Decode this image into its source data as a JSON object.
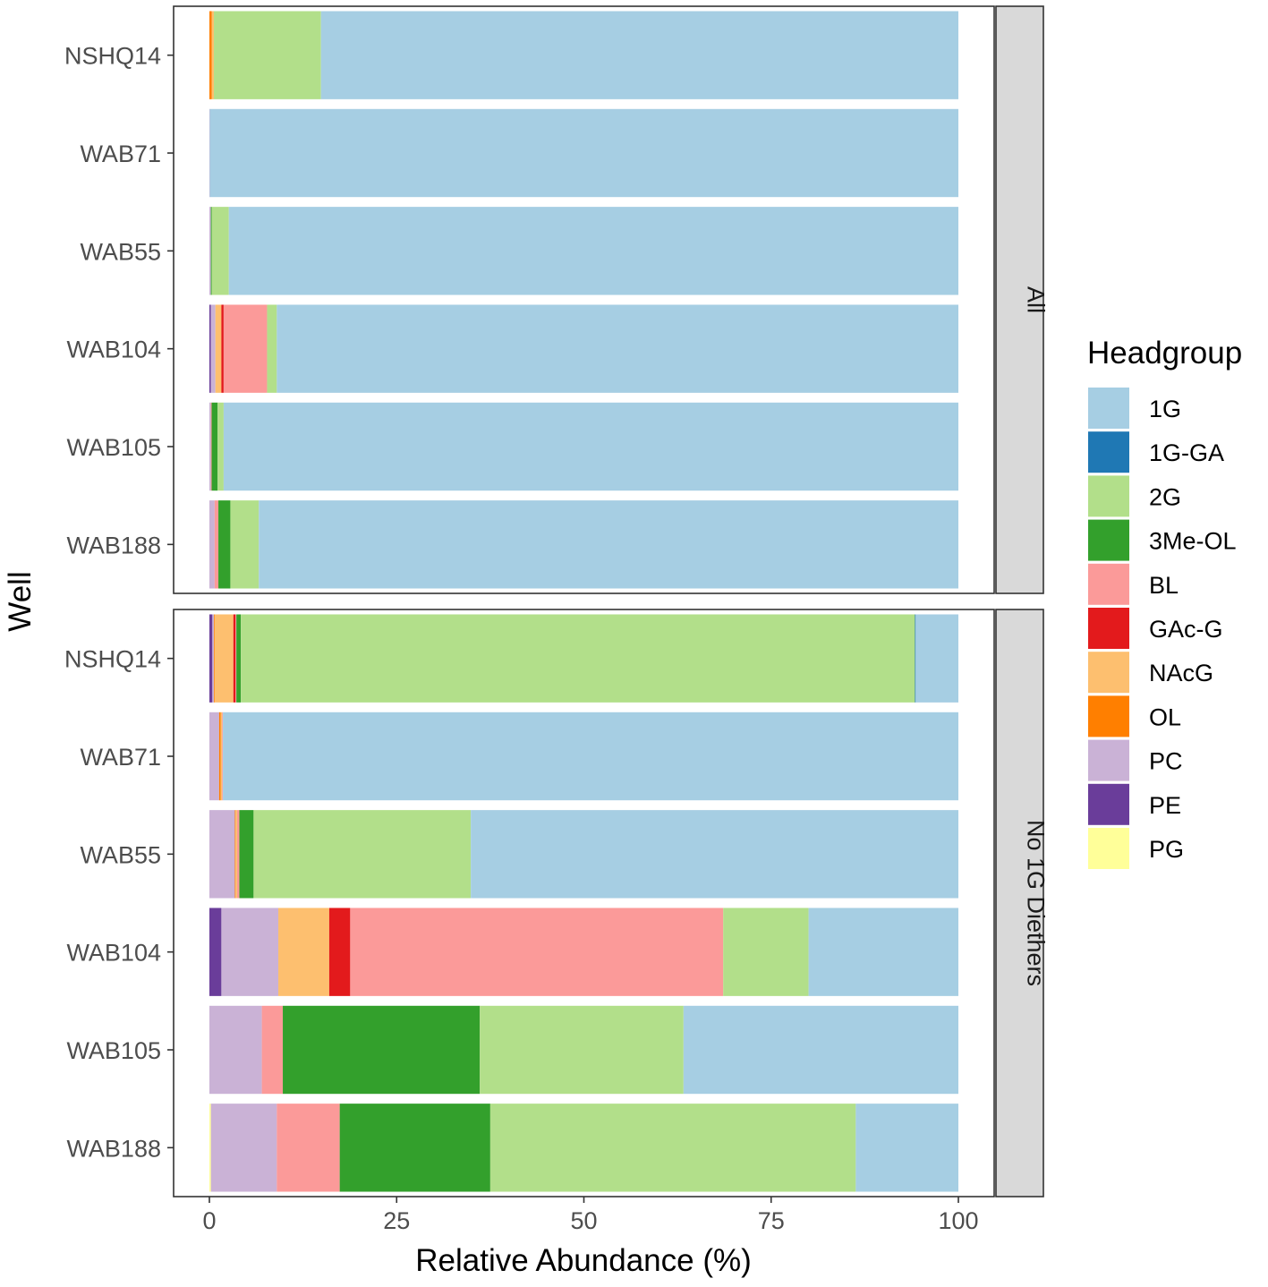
{
  "chart_data": {
    "type": "bar",
    "orientation": "horizontal",
    "stacked": true,
    "xlabel": "Relative Abundance (%)",
    "ylabel": "Well",
    "xlim": [
      0,
      100
    ],
    "xticks": [
      0,
      25,
      50,
      75,
      100
    ],
    "xtick_labels": [
      "0",
      "25",
      "50",
      "75",
      "100"
    ],
    "grid": false,
    "legend": {
      "title": "Headgroup",
      "position": "right",
      "entries": [
        {
          "name": "1G",
          "color": "#A6CEE3"
        },
        {
          "name": "1G-GA",
          "color": "#1F78B4"
        },
        {
          "name": "2G",
          "color": "#B2DF8A"
        },
        {
          "name": "3Me-OL",
          "color": "#33A02C"
        },
        {
          "name": "BL",
          "color": "#FB9A99"
        },
        {
          "name": "GAc-G",
          "color": "#E31A1C"
        },
        {
          "name": "NAcG",
          "color": "#FDBF6F"
        },
        {
          "name": "OL",
          "color": "#FF7F00"
        },
        {
          "name": "PC",
          "color": "#CAB2D6"
        },
        {
          "name": "PE",
          "color": "#6A3D9A"
        },
        {
          "name": "PG",
          "color": "#FFFF99"
        }
      ]
    },
    "stack_order": [
      "PG",
      "PE",
      "PC",
      "OL",
      "NAcG",
      "GAc-G",
      "BL",
      "3Me-OL",
      "2G",
      "1G-GA",
      "1G"
    ],
    "panels": [
      {
        "label": "All",
        "wells": [
          {
            "name": "NSHQ14",
            "segments": {
              "PG": 0,
              "PE": 0,
              "PC": 0,
              "OL": 0.3,
              "NAcG": 0.3,
              "GAc-G": 0,
              "BL": 0,
              "3Me-OL": 0,
              "2G": 14.3,
              "1G-GA": 0,
              "1G": 85.1
            }
          },
          {
            "name": "WAB71",
            "segments": {
              "PG": 0,
              "PE": 0,
              "PC": 0.05,
              "OL": 0,
              "NAcG": 0,
              "GAc-G": 0,
              "BL": 0,
              "3Me-OL": 0,
              "2G": 0,
              "1G-GA": 0,
              "1G": 99.95
            }
          },
          {
            "name": "WAB55",
            "segments": {
              "PG": 0,
              "PE": 0,
              "PC": 0.2,
              "OL": 0,
              "NAcG": 0,
              "GAc-G": 0,
              "BL": 0,
              "3Me-OL": 0.1,
              "2G": 2.3,
              "1G-GA": 0,
              "1G": 97.4
            }
          },
          {
            "name": "WAB104",
            "segments": {
              "PG": 0,
              "PE": 0.2,
              "PC": 0.6,
              "OL": 0,
              "NAcG": 0.8,
              "GAc-G": 0.3,
              "BL": 5.8,
              "3Me-OL": 0,
              "2G": 1.3,
              "1G-GA": 0,
              "1G": 91.0
            }
          },
          {
            "name": "WAB105",
            "segments": {
              "PG": 0,
              "PE": 0,
              "PC": 0.2,
              "OL": 0,
              "NAcG": 0,
              "GAc-G": 0,
              "BL": 0.1,
              "3Me-OL": 0.8,
              "2G": 0.8,
              "1G-GA": 0,
              "1G": 98.1
            }
          },
          {
            "name": "WAB188",
            "segments": {
              "PG": 0,
              "PE": 0,
              "PC": 0.7,
              "OL": 0,
              "NAcG": 0,
              "GAc-G": 0,
              "BL": 0.5,
              "3Me-OL": 1.6,
              "2G": 3.8,
              "1G-GA": 0,
              "1G": 93.4
            }
          }
        ]
      },
      {
        "label": "No 1G Diethers",
        "wells": [
          {
            "name": "NSHQ14",
            "segments": {
              "PG": 0,
              "PE": 0.4,
              "PC": 0.2,
              "OL": 0.1,
              "NAcG": 2.5,
              "GAc-G": 0.3,
              "BL": 0.1,
              "3Me-OL": 0.6,
              "2G": 90.0,
              "1G-GA": 0.1,
              "1G": 5.7
            }
          },
          {
            "name": "WAB71",
            "segments": {
              "PG": 0,
              "PE": 0,
              "PC": 1.3,
              "OL": 0.2,
              "NAcG": 0.2,
              "GAc-G": 0,
              "BL": 0.1,
              "3Me-OL": 0,
              "2G": 0,
              "1G-GA": 0,
              "1G": 98.2
            }
          },
          {
            "name": "WAB55",
            "segments": {
              "PG": 0,
              "PE": 0,
              "PC": 3.4,
              "OL": 0.1,
              "NAcG": 0.2,
              "GAc-G": 0,
              "BL": 0.3,
              "3Me-OL": 1.9,
              "2G": 29.0,
              "1G-GA": 0,
              "1G": 65.1
            }
          },
          {
            "name": "WAB104",
            "segments": {
              "PG": 0,
              "PE": 1.6,
              "PC": 7.6,
              "OL": 0,
              "NAcG": 6.8,
              "GAc-G": 2.8,
              "BL": 49.8,
              "3Me-OL": 0,
              "2G": 11.4,
              "1G-GA": 0,
              "1G": 20.0
            }
          },
          {
            "name": "WAB105",
            "segments": {
              "PG": 0,
              "PE": 0,
              "PC": 7.0,
              "OL": 0,
              "NAcG": 0,
              "GAc-G": 0,
              "BL": 2.8,
              "3Me-OL": 26.3,
              "2G": 27.2,
              "1G-GA": 0,
              "1G": 36.7
            }
          },
          {
            "name": "WAB188",
            "segments": {
              "PG": 0.2,
              "PE": 0,
              "PC": 8.8,
              "OL": 0,
              "NAcG": 0,
              "GAc-G": 0,
              "BL": 8.4,
              "3Me-OL": 20.1,
              "2G": 48.8,
              "1G-GA": 0,
              "1G": 13.7
            }
          }
        ]
      }
    ]
  }
}
